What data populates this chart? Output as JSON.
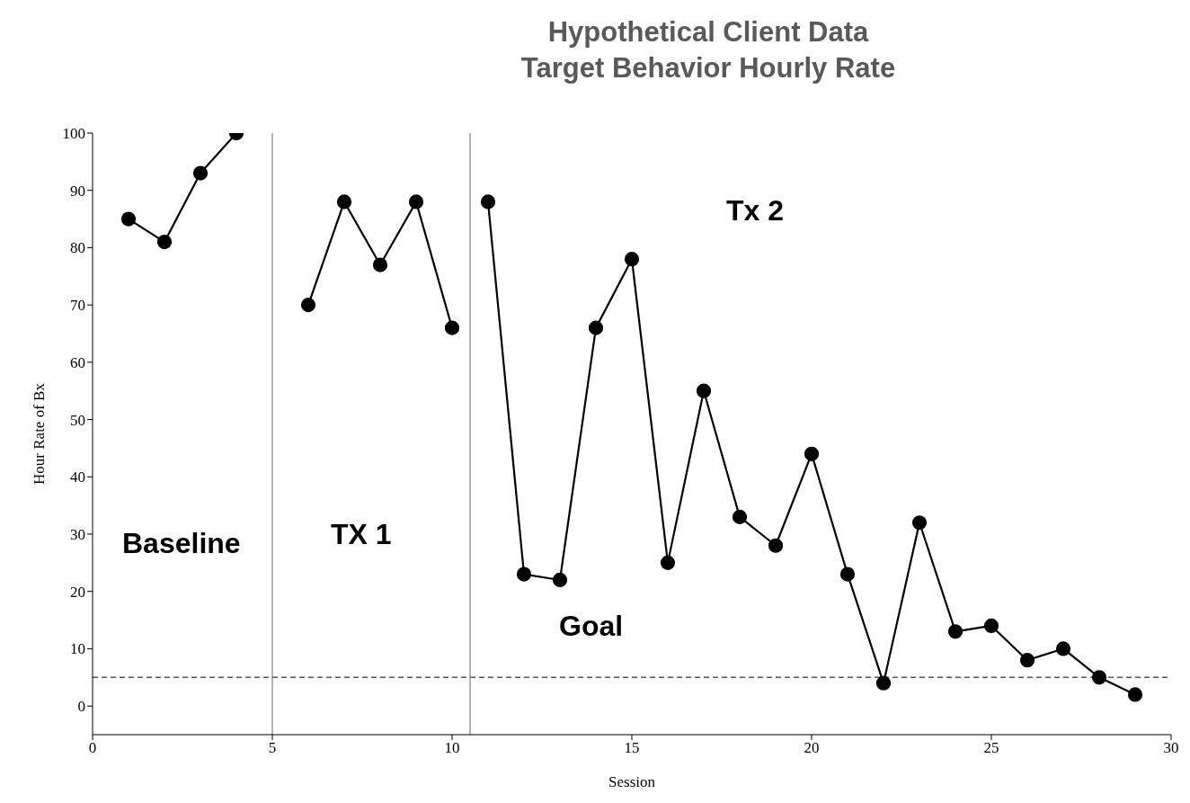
{
  "chart_data": {
    "type": "line",
    "title": "Hypothetical Client Data\nTarget Behavior Hourly Rate",
    "xlabel": "Session",
    "ylabel": "Hour Rate of Bx",
    "series": [
      {
        "color": "#000000",
        "x": [
          1,
          2,
          3,
          4
        ],
        "values": [
          85,
          81,
          93,
          100
        ]
      },
      {
        "color": "#000000",
        "x": [
          6,
          7,
          8,
          9,
          10
        ],
        "values": [
          70,
          88,
          77,
          88,
          66
        ]
      },
      {
        "color": "#000000",
        "x": [
          11,
          12,
          13,
          14,
          15,
          16,
          17,
          18,
          19,
          20,
          21,
          22,
          23,
          24,
          25,
          26,
          27,
          28,
          29
        ],
        "values": [
          88,
          23,
          22,
          66,
          78,
          25,
          55,
          33,
          28,
          44,
          23,
          4,
          32,
          13,
          14,
          8,
          10,
          5,
          2
        ]
      }
    ],
    "xlim": [
      0,
      30
    ],
    "xticks": [
      0,
      5,
      10,
      15,
      20,
      25,
      30
    ],
    "ylim": [
      -5,
      100
    ],
    "yticks": [
      0,
      10,
      20,
      30,
      40,
      50,
      60,
      70,
      80,
      90,
      100
    ],
    "ref_lines": [
      {
        "axis": "x",
        "value": 5,
        "color": "#808080",
        "line_style": "solid"
      },
      {
        "axis": "x",
        "value": 10.5,
        "color": "#808080",
        "line_style": "solid"
      },
      {
        "axis": "y",
        "value": 5,
        "color": "#595959",
        "line_style": "dashed"
      }
    ],
    "annotations": [
      "Baseline",
      "TX 1",
      "Goal",
      "Tx 2"
    ],
    "grid": false,
    "legend": false,
    "marker": "circle",
    "line_style": "solid"
  }
}
